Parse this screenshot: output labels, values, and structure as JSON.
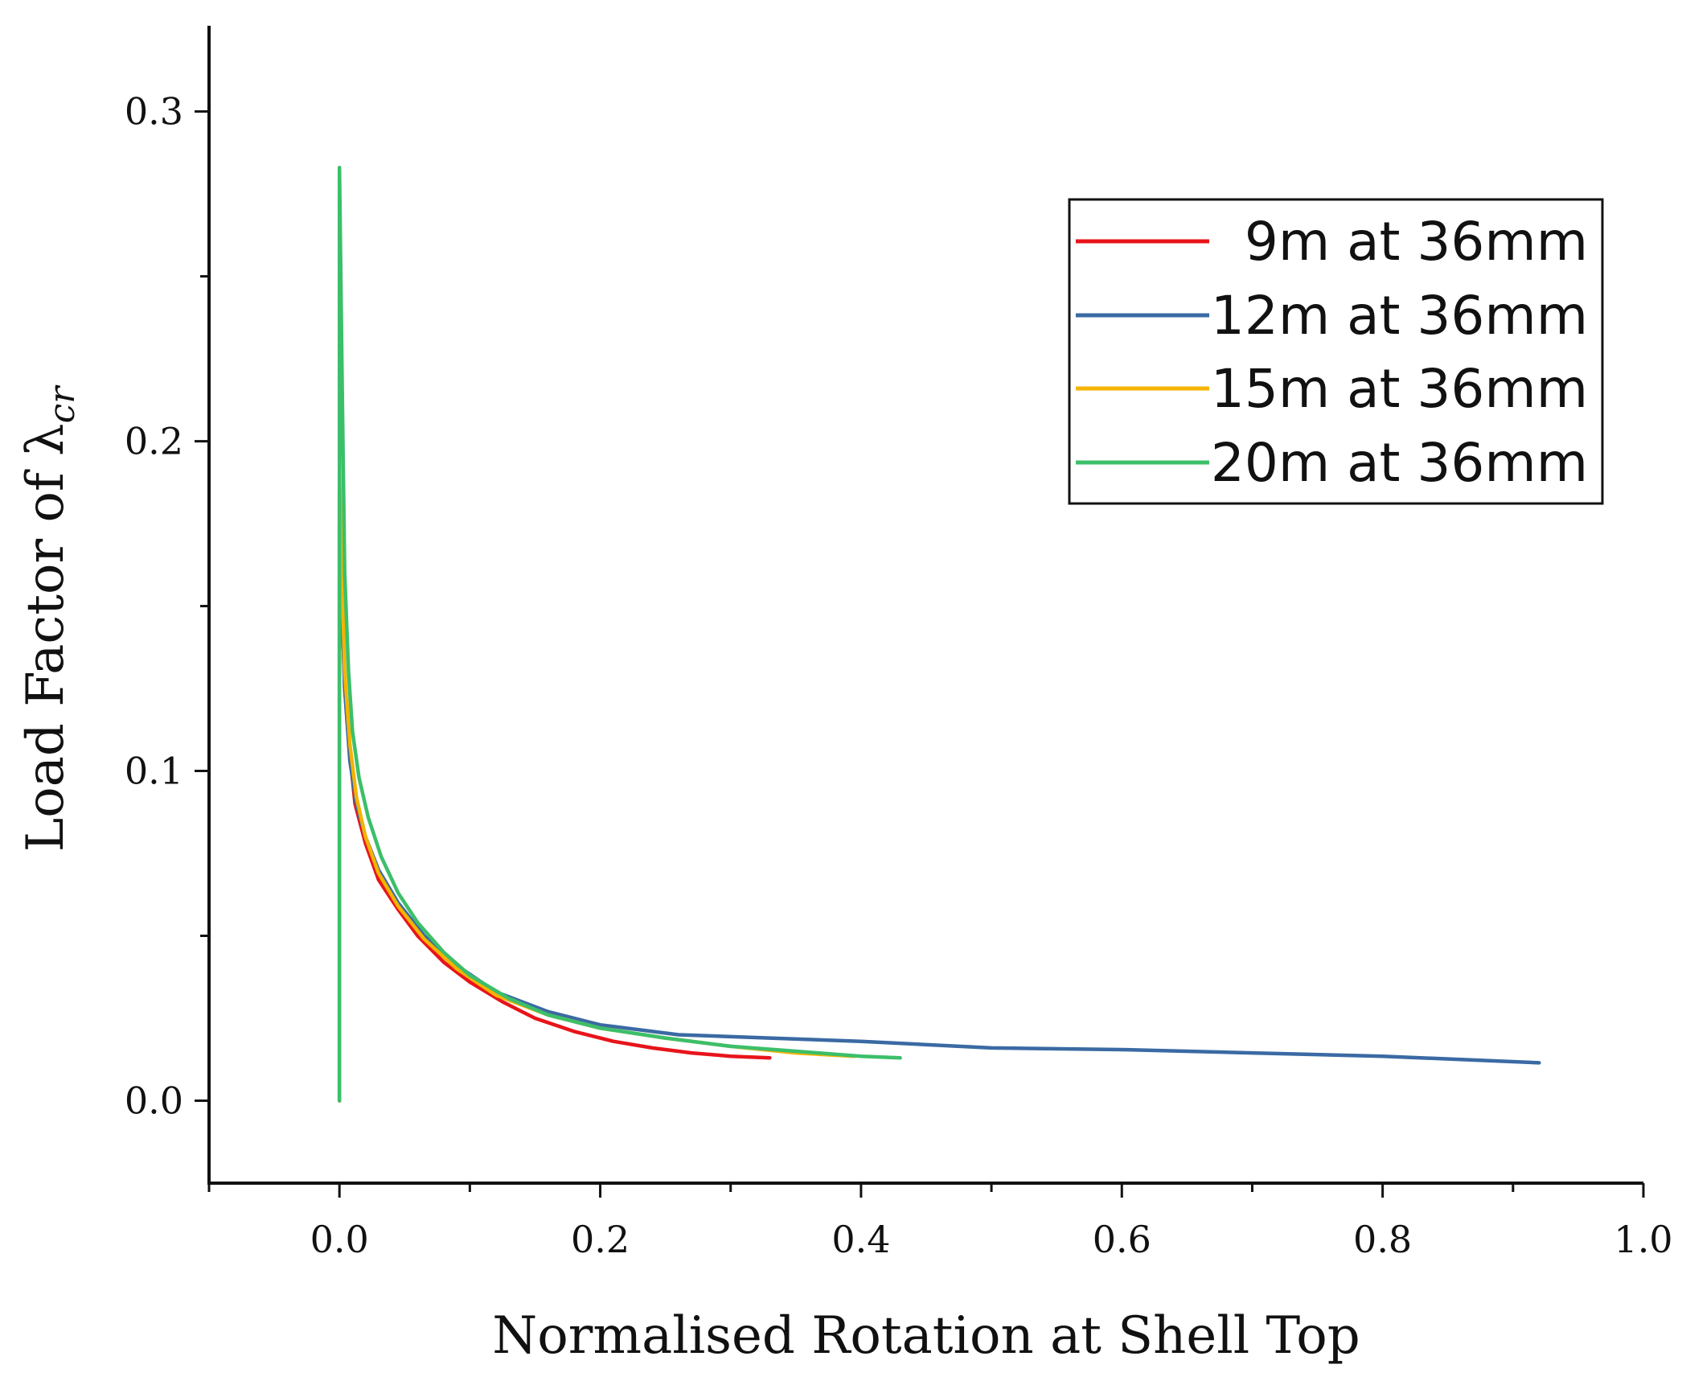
{
  "chart_data": {
    "type": "line",
    "title": "",
    "xlabel": "Normalised Rotation at Shell Top",
    "ylabel_prefix": "Load Factor of ",
    "ylabel_symbol": "λ",
    "ylabel_subscript": "cr",
    "xlim": [
      -0.1,
      1.0
    ],
    "ylim": [
      -0.025,
      0.326
    ],
    "xticks": [
      0.0,
      0.2,
      0.4,
      0.6,
      0.8,
      1.0
    ],
    "xtick_labels": [
      "0.0",
      "0.2",
      "0.4",
      "0.6",
      "0.8",
      "1.0"
    ],
    "yticks": [
      0.0,
      0.1,
      0.2,
      0.3
    ],
    "ytick_labels": [
      "0.0",
      "0.1",
      "0.2",
      "0.3"
    ],
    "grid": false,
    "legend_position": "top-right",
    "series": [
      {
        "name": "9m at 36mm",
        "color": "#e8141b",
        "points": [
          [
            0,
            0
          ],
          [
            0,
            0.185
          ],
          [
            0.002,
            0.15
          ],
          [
            0.004,
            0.125
          ],
          [
            0.008,
            0.105
          ],
          [
            0.012,
            0.09
          ],
          [
            0.02,
            0.078
          ],
          [
            0.03,
            0.067
          ],
          [
            0.045,
            0.058
          ],
          [
            0.06,
            0.05
          ],
          [
            0.08,
            0.042
          ],
          [
            0.1,
            0.036
          ],
          [
            0.125,
            0.03
          ],
          [
            0.15,
            0.025
          ],
          [
            0.18,
            0.021
          ],
          [
            0.21,
            0.018
          ],
          [
            0.24,
            0.016
          ],
          [
            0.27,
            0.0145
          ],
          [
            0.3,
            0.0135
          ],
          [
            0.33,
            0.013
          ]
        ]
      },
      {
        "name": "12m at 36mm",
        "color": "#3a6aa3",
        "points": [
          [
            0,
            0
          ],
          [
            0,
            0.175
          ],
          [
            0.002,
            0.15
          ],
          [
            0.004,
            0.125
          ],
          [
            0.008,
            0.103
          ],
          [
            0.013,
            0.09
          ],
          [
            0.02,
            0.08
          ],
          [
            0.03,
            0.07
          ],
          [
            0.045,
            0.06
          ],
          [
            0.065,
            0.05
          ],
          [
            0.09,
            0.041
          ],
          [
            0.12,
            0.033
          ],
          [
            0.16,
            0.027
          ],
          [
            0.2,
            0.023
          ],
          [
            0.26,
            0.02
          ],
          [
            0.33,
            0.019
          ],
          [
            0.4,
            0.018
          ],
          [
            0.5,
            0.016
          ],
          [
            0.6,
            0.0155
          ],
          [
            0.7,
            0.0145
          ],
          [
            0.8,
            0.0135
          ],
          [
            0.92,
            0.0115
          ]
        ]
      },
      {
        "name": "15m at 36mm",
        "color": "#f4b400",
        "points": [
          [
            0,
            0
          ],
          [
            0,
            0.19
          ],
          [
            0.002,
            0.16
          ],
          [
            0.004,
            0.13
          ],
          [
            0.008,
            0.108
          ],
          [
            0.013,
            0.092
          ],
          [
            0.02,
            0.08
          ],
          [
            0.03,
            0.069
          ],
          [
            0.045,
            0.059
          ],
          [
            0.065,
            0.049
          ],
          [
            0.09,
            0.04
          ],
          [
            0.12,
            0.032
          ],
          [
            0.16,
            0.026
          ],
          [
            0.2,
            0.022
          ],
          [
            0.25,
            0.019
          ],
          [
            0.3,
            0.0165
          ],
          [
            0.35,
            0.0145
          ],
          [
            0.395,
            0.0135
          ]
        ]
      },
      {
        "name": "20m at 36mm",
        "color": "#3cbf6a",
        "points": [
          [
            0,
            0
          ],
          [
            0,
            0.283
          ],
          [
            0.002,
            0.22
          ],
          [
            0.004,
            0.16
          ],
          [
            0.007,
            0.13
          ],
          [
            0.01,
            0.112
          ],
          [
            0.015,
            0.098
          ],
          [
            0.022,
            0.086
          ],
          [
            0.032,
            0.074
          ],
          [
            0.045,
            0.063
          ],
          [
            0.06,
            0.054
          ],
          [
            0.08,
            0.045
          ],
          [
            0.1,
            0.038
          ],
          [
            0.13,
            0.031
          ],
          [
            0.16,
            0.026
          ],
          [
            0.2,
            0.022
          ],
          [
            0.25,
            0.019
          ],
          [
            0.3,
            0.0165
          ],
          [
            0.35,
            0.015
          ],
          [
            0.4,
            0.0135
          ],
          [
            0.43,
            0.013
          ]
        ]
      }
    ]
  }
}
